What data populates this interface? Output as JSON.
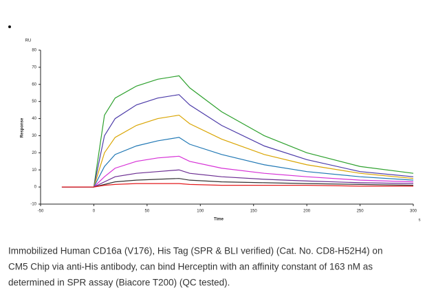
{
  "chart_data": {
    "type": "line",
    "y_unit": "RU",
    "ylabel": "Response",
    "xlabel": "Time",
    "x_unit": "s",
    "x": [
      -30,
      0,
      10,
      20,
      40,
      60,
      80,
      90,
      120,
      160,
      200,
      250,
      300
    ],
    "xlim": [
      -50,
      300
    ],
    "xticks": [
      -50,
      0,
      50,
      100,
      150,
      200,
      250,
      300
    ],
    "ylim": [
      -10,
      80
    ],
    "yticks": [
      -10,
      0,
      10,
      20,
      30,
      40,
      50,
      60,
      70,
      80
    ],
    "grid": false,
    "series": [
      {
        "color": "#2ca02c",
        "values": [
          0,
          0,
          42,
          52,
          59,
          63,
          65,
          58,
          44,
          30,
          20,
          12,
          8
        ]
      },
      {
        "color": "#4b3aa8",
        "values": [
          0,
          0,
          30,
          40,
          48,
          52,
          54,
          48,
          36,
          24,
          16,
          9,
          6
        ]
      },
      {
        "color": "#d9a400",
        "values": [
          0,
          0,
          20,
          29,
          36,
          40,
          42,
          37,
          28,
          19,
          13,
          8,
          5
        ]
      },
      {
        "color": "#1f77b4",
        "values": [
          0,
          0,
          12,
          19,
          24,
          27,
          29,
          25,
          19,
          13,
          9,
          6,
          4
        ]
      },
      {
        "color": "#d62fd6",
        "values": [
          0,
          0,
          6,
          11,
          15,
          17,
          18,
          15,
          11,
          8,
          6,
          4,
          3
        ]
      },
      {
        "color": "#6a2c91",
        "values": [
          0,
          0,
          3,
          6,
          8,
          9,
          10,
          8,
          6,
          4.5,
          3.5,
          2.5,
          2
        ]
      },
      {
        "color": "#333333",
        "values": [
          0,
          0,
          1.5,
          3,
          4,
          4.5,
          5,
          4,
          3,
          2.5,
          2,
          1.5,
          1
        ]
      },
      {
        "color": "#e31a1c",
        "values": [
          0,
          0,
          1,
          1.5,
          2,
          2,
          2,
          1.5,
          1,
          1,
          1,
          0.5,
          0.5
        ]
      }
    ]
  },
  "caption": [
    "Immobilized Human CD16a (V176), His Tag (SPR & BLI verified) (Cat. No. CD8-H52H4) on",
    "CM5 Chip via anti-His antibody, can bind   Herceptin with an affinity constant of 163 nM as",
    "determined in SPR assay (Biacore T200) (QC tested)."
  ]
}
